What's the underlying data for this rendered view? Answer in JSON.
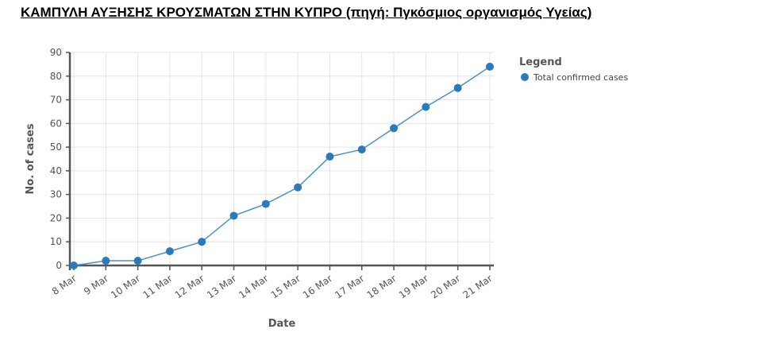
{
  "title": "ΚΑΜΠΥΛΗ ΑΥΞΗΣΗΣ ΚΡΟΥΣΜΑΤΩΝ ΣΤΗΝ ΚΥΠΡΟ (πηγή: Πγκόσμιος οργανισμός Υγείας)",
  "chart_data": {
    "type": "line",
    "categories": [
      "8 Mar",
      "9 Mar",
      "10 Mar",
      "11 Mar",
      "12 Mar",
      "13 Mar",
      "14 Mar",
      "15 Mar",
      "16 Mar",
      "17 Mar",
      "18 Mar",
      "19 Mar",
      "20 Mar",
      "21 Mar"
    ],
    "series": [
      {
        "name": "Total confirmed cases",
        "values": [
          0,
          2,
          2,
          6,
          10,
          21,
          26,
          33,
          46,
          49,
          58,
          67,
          75,
          84
        ],
        "color": "#2b7bba"
      }
    ],
    "xlabel": "Date",
    "ylabel": "No. of cases",
    "ylim": [
      0,
      90
    ],
    "yticks": [
      0,
      10,
      20,
      30,
      40,
      50,
      60,
      70,
      80,
      90
    ],
    "legend_title": "Legend",
    "legend_position": "top-right",
    "grid": true,
    "line_color": "#4a90c8",
    "marker_color": "#2b7bba"
  }
}
